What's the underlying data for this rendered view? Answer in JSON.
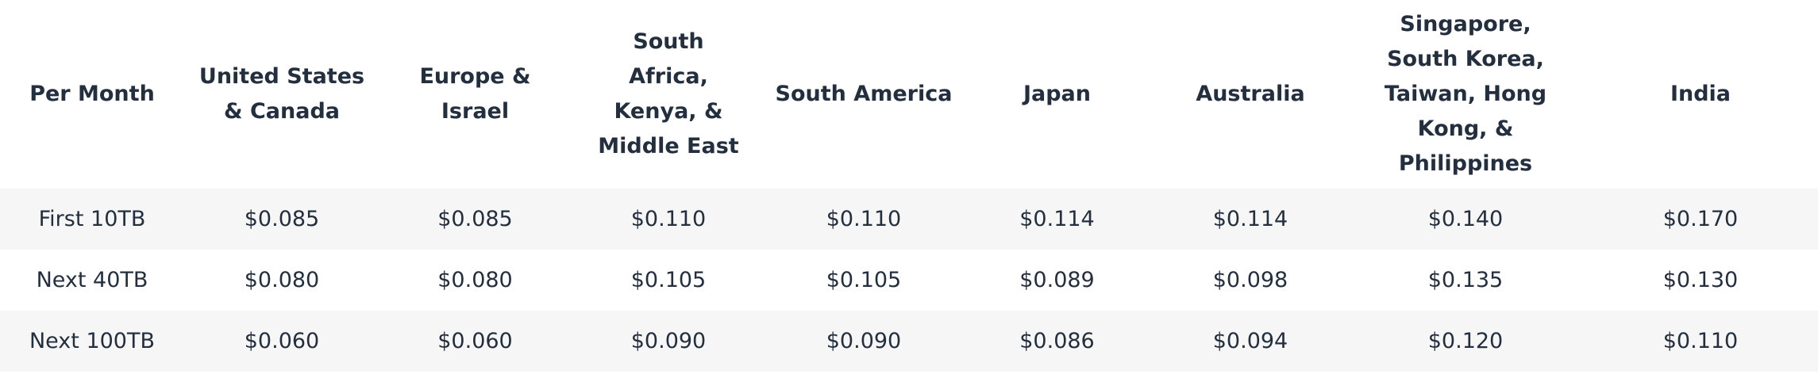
{
  "table": {
    "headers": [
      "Per Month",
      "United States & Canada",
      "Europe & Israel",
      "South Africa, Kenya, & Middle East",
      "South America",
      "Japan",
      "Australia",
      "Singapore, South Korea, Taiwan, Hong Kong, & Philippines",
      "India"
    ],
    "rows": [
      [
        "First 10TB",
        "$0.085",
        "$0.085",
        "$0.110",
        "$0.110",
        "$0.114",
        "$0.114",
        "$0.140",
        "$0.170"
      ],
      [
        "Next 40TB",
        "$0.080",
        "$0.080",
        "$0.105",
        "$0.105",
        "$0.089",
        "$0.098",
        "$0.135",
        "$0.130"
      ],
      [
        "Next 100TB",
        "$0.060",
        "$0.060",
        "$0.090",
        "$0.090",
        "$0.086",
        "$0.094",
        "$0.120",
        "$0.110"
      ]
    ]
  },
  "colors": {
    "row_shade": "#f6f6f6",
    "text": "#232f3e"
  }
}
